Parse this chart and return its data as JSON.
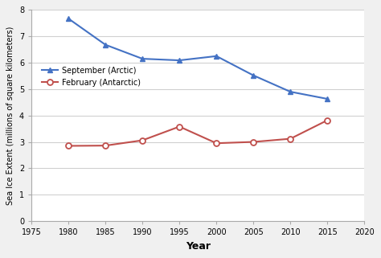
{
  "arctic_years": [
    1980,
    1985,
    1990,
    1995,
    2000,
    2005,
    2010,
    2015
  ],
  "arctic_values": [
    7.67,
    6.68,
    6.15,
    6.09,
    6.25,
    5.52,
    4.9,
    4.63
  ],
  "antarctic_years": [
    1980,
    1985,
    1990,
    1995,
    2000,
    2005,
    2010,
    2015
  ],
  "antarctic_values": [
    2.85,
    2.86,
    3.06,
    3.58,
    2.95,
    3.0,
    3.12,
    3.82
  ],
  "arctic_label": "September (Arctic)",
  "antarctic_label": "February (Antarctic)",
  "xlabel": "Year",
  "ylabel": "Sea Ice Extent (millions of square kilometers)",
  "xlim": [
    1975,
    2020
  ],
  "ylim": [
    0,
    8
  ],
  "xticks": [
    1975,
    1980,
    1985,
    1990,
    1995,
    2000,
    2005,
    2010,
    2015,
    2020
  ],
  "yticks": [
    0,
    1,
    2,
    3,
    4,
    5,
    6,
    7,
    8
  ],
  "arctic_color": "#4472C4",
  "antarctic_color": "#C0504D",
  "figure_bg": "#f0f0f0",
  "plot_bg": "#ffffff",
  "grid_color": "#d0d0d0",
  "spine_color": "#aaaaaa"
}
